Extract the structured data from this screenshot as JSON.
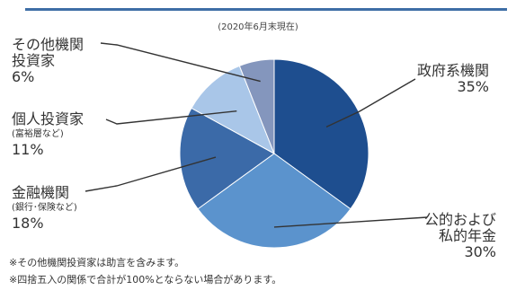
{
  "header": {
    "as_of": "(2020年6月末現在)"
  },
  "colors": {
    "rule": "#3e6ea6",
    "leader": "#333333"
  },
  "chart_data": {
    "type": "pie",
    "title": "",
    "start_angle_deg": 0,
    "direction": "clockwise",
    "slices": [
      {
        "key": "gov",
        "label_lines": [
          "政府系機関"
        ],
        "sublabel": "",
        "value": 35,
        "value_label": "35%",
        "color": "#1e4e8f"
      },
      {
        "key": "pension",
        "label_lines": [
          "公的および",
          "私的年金"
        ],
        "sublabel": "",
        "value": 30,
        "value_label": "30%",
        "color": "#5b93cd"
      },
      {
        "key": "financial",
        "label_lines": [
          "金融機関"
        ],
        "sublabel": "(銀行･保険など)",
        "value": 18,
        "value_label": "18%",
        "color": "#3b6aa8"
      },
      {
        "key": "individual",
        "label_lines": [
          "個人投資家"
        ],
        "sublabel": "(富裕層など)",
        "value": 11,
        "value_label": "11%",
        "color": "#a9c6e8"
      },
      {
        "key": "other",
        "label_lines": [
          "その他機関",
          "投資家"
        ],
        "sublabel": "",
        "value": 6,
        "value_label": "6%",
        "color": "#8496bd"
      }
    ]
  },
  "notes": [
    "※その他機関投資家は助言を含みます。",
    "※四捨五入の関係で合計が100%とならない場合があります。"
  ]
}
